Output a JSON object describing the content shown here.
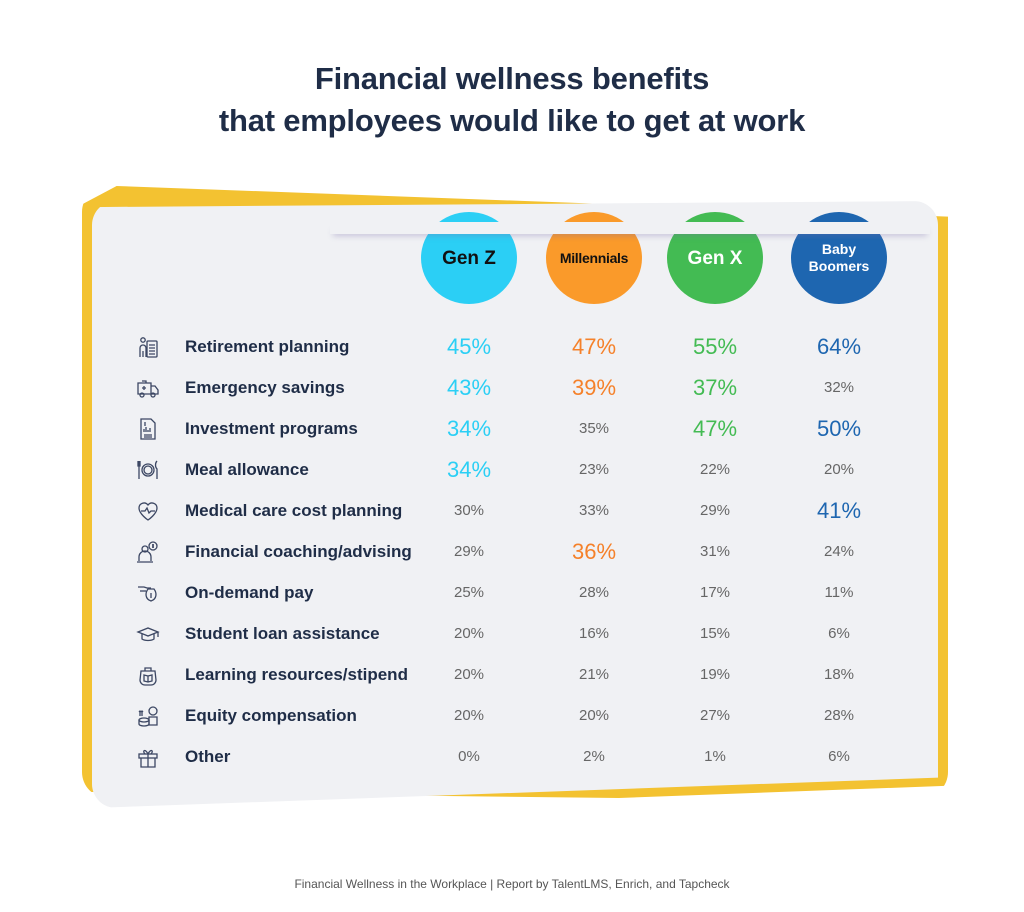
{
  "title": {
    "line1": "Financial wellness benefits",
    "line2": "that employees would like to get at work"
  },
  "generations": [
    {
      "label_lines": [
        "Gen Z"
      ],
      "color": "#2bcff5",
      "text_color": "#111111"
    },
    {
      "label_lines": [
        "Millennials"
      ],
      "color": "#fa9a2a",
      "text_color": "#111111"
    },
    {
      "label_lines": [
        "Gen X"
      ],
      "color": "#43bb53",
      "text_color": "#ffffff"
    },
    {
      "label_lines": [
        "Baby",
        "Boomers"
      ],
      "color": "#1e66b0",
      "text_color": "#ffffff"
    }
  ],
  "rows": [
    {
      "label": "Retirement planning",
      "icon": "retirement-icon",
      "values": [
        "45%",
        "47%",
        "55%",
        "64%"
      ],
      "highlight": [
        true,
        true,
        true,
        true
      ]
    },
    {
      "label": "Emergency savings",
      "icon": "ambulance-icon",
      "values": [
        "43%",
        "39%",
        "37%",
        "32%"
      ],
      "highlight": [
        true,
        true,
        true,
        false
      ]
    },
    {
      "label": "Investment programs",
      "icon": "investment-report-icon",
      "values": [
        "34%",
        "35%",
        "47%",
        "50%"
      ],
      "highlight": [
        true,
        false,
        true,
        true
      ]
    },
    {
      "label": "Meal allowance",
      "icon": "plate-cutlery-icon",
      "values": [
        "34%",
        "23%",
        "22%",
        "20%"
      ],
      "highlight": [
        true,
        false,
        false,
        false
      ]
    },
    {
      "label": "Medical care cost planning",
      "icon": "heart-pulse-icon",
      "values": [
        "30%",
        "33%",
        "29%",
        "41%"
      ],
      "highlight": [
        false,
        false,
        false,
        true
      ]
    },
    {
      "label": "Financial coaching/advising",
      "icon": "advisor-icon",
      "values": [
        "29%",
        "36%",
        "31%",
        "24%"
      ],
      "highlight": [
        false,
        true,
        false,
        false
      ]
    },
    {
      "label": "On-demand pay",
      "icon": "money-bag-hand-icon",
      "values": [
        "25%",
        "28%",
        "17%",
        "11%"
      ],
      "highlight": [
        false,
        false,
        false,
        false
      ]
    },
    {
      "label": "Student loan assistance",
      "icon": "graduation-cap-icon",
      "values": [
        "20%",
        "16%",
        "15%",
        "6%"
      ],
      "highlight": [
        false,
        false,
        false,
        false
      ]
    },
    {
      "label": "Learning resources/stipend",
      "icon": "purse-book-icon",
      "values": [
        "20%",
        "21%",
        "19%",
        "18%"
      ],
      "highlight": [
        false,
        false,
        false,
        false
      ]
    },
    {
      "label": "Equity compensation",
      "icon": "coins-growth-icon",
      "values": [
        "20%",
        "20%",
        "27%",
        "28%"
      ],
      "highlight": [
        false,
        false,
        false,
        false
      ]
    },
    {
      "label": "Other",
      "icon": "gift-icon",
      "values": [
        "0%",
        "2%",
        "1%",
        "6%"
      ],
      "highlight": [
        false,
        false,
        false,
        false
      ]
    }
  ],
  "footer": "Financial Wellness in the Workplace | Report by TalentLMS, Enrich, and Tapcheck",
  "chart_data": {
    "type": "table",
    "title": "Financial wellness benefits that employees would like to get at work",
    "categories": [
      "Retirement planning",
      "Emergency savings",
      "Investment programs",
      "Meal allowance",
      "Medical care cost planning",
      "Financial coaching/advising",
      "On-demand pay",
      "Student loan assistance",
      "Learning resources/stipend",
      "Equity compensation",
      "Other"
    ],
    "series": [
      {
        "name": "Gen Z",
        "color": "#2bcff5",
        "values": [
          45,
          43,
          34,
          34,
          30,
          29,
          25,
          20,
          20,
          20,
          0
        ]
      },
      {
        "name": "Millennials",
        "color": "#fa9a2a",
        "values": [
          47,
          39,
          35,
          23,
          33,
          36,
          28,
          16,
          21,
          20,
          2
        ]
      },
      {
        "name": "Gen X",
        "color": "#43bb53",
        "values": [
          55,
          37,
          47,
          22,
          29,
          31,
          17,
          15,
          19,
          27,
          1
        ]
      },
      {
        "name": "Baby Boomers",
        "color": "#1e66b0",
        "values": [
          64,
          32,
          50,
          20,
          41,
          24,
          11,
          6,
          18,
          28,
          6
        ]
      }
    ],
    "unit": "%",
    "source": "Financial Wellness in the Workplace | Report by TalentLMS, Enrich, and Tapcheck"
  }
}
